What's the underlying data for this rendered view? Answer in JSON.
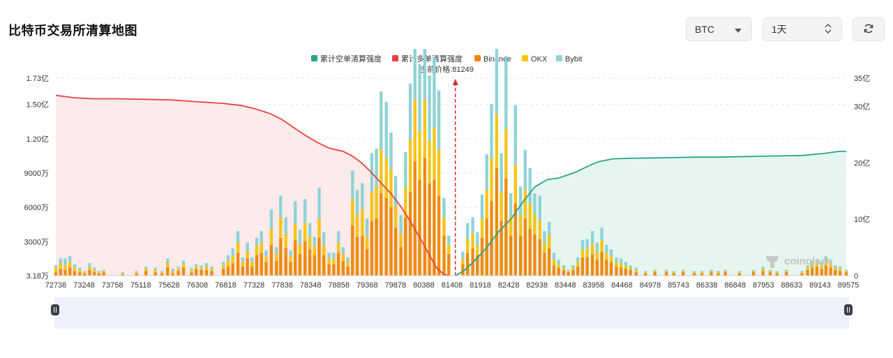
{
  "page": {
    "title": "比特币交易所清算地图"
  },
  "controls": {
    "coin": {
      "value": "BTC",
      "icon": "chevron-down-icon"
    },
    "range": {
      "value": "1天",
      "icon": "up-down-caret-icon"
    },
    "refresh": {
      "icon": "refresh-icon"
    }
  },
  "legend": [
    {
      "label": "累计空单清算强度",
      "color": "#27a586"
    },
    {
      "label": "累计多单清算强度",
      "color": "#e84142"
    },
    {
      "label": "Binance",
      "color": "#f08a0c"
    },
    {
      "label": "OKX",
      "color": "#f5c518"
    },
    {
      "label": "Bybit",
      "color": "#8fd3d6"
    }
  ],
  "current_price_label": "当前价格:81249",
  "watermark": "coinglass",
  "chart_data": {
    "type": "bar",
    "current_price": 81249,
    "x_range": [
      72738,
      89575
    ],
    "x_ticks": [
      "72738",
      "73248",
      "73758",
      "75118",
      "75628",
      "76308",
      "76818",
      "77328",
      "77838",
      "78348",
      "78858",
      "79368",
      "79878",
      "80388",
      "81408",
      "81918",
      "82428",
      "82938",
      "83448",
      "83958",
      "84468",
      "84978",
      "85743",
      "86338",
      "86848",
      "87953",
      "88633",
      "89143",
      "89575"
    ],
    "y_left": {
      "ticks": [
        "3.18万",
        "3000万",
        "6000万",
        "9000万",
        "1.20亿",
        "1.50亿",
        "1.73亿"
      ],
      "range": [
        318000,
        173000000
      ]
    },
    "y_right": {
      "ticks": [
        "0",
        "10亿",
        "20亿",
        "30亿",
        "35亿"
      ],
      "range": [
        0,
        3500000000
      ]
    },
    "series_left_scale_unit": "万",
    "cumulative_long": [
      [
        72738,
        158000000
      ],
      [
        73100,
        156000000
      ],
      [
        73500,
        155000000
      ],
      [
        74000,
        155000000
      ],
      [
        74600,
        154500000
      ],
      [
        75200,
        154000000
      ],
      [
        75700,
        152500000
      ],
      [
        76300,
        151000000
      ],
      [
        76700,
        149000000
      ],
      [
        77000,
        146000000
      ],
      [
        77300,
        142000000
      ],
      [
        77550,
        137000000
      ],
      [
        77800,
        130000000
      ],
      [
        78050,
        123000000
      ],
      [
        78300,
        117000000
      ],
      [
        78550,
        112000000
      ],
      [
        78858,
        109000000
      ],
      [
        79050,
        105000000
      ],
      [
        79250,
        99000000
      ],
      [
        79450,
        91000000
      ],
      [
        79650,
        82000000
      ],
      [
        79878,
        72000000
      ],
      [
        80100,
        60000000
      ],
      [
        80300,
        47000000
      ],
      [
        80500,
        33000000
      ],
      [
        80700,
        18000000
      ],
      [
        80850,
        7000000
      ],
      [
        81000,
        1500000
      ],
      [
        81100,
        318000
      ]
    ],
    "cumulative_short": [
      [
        81249,
        0
      ],
      [
        81450,
        100000000
      ],
      [
        81700,
        300000000
      ],
      [
        81918,
        500000000
      ],
      [
        82150,
        760000000
      ],
      [
        82428,
        1000000000
      ],
      [
        82700,
        1320000000
      ],
      [
        82938,
        1570000000
      ],
      [
        83200,
        1700000000
      ],
      [
        83448,
        1730000000
      ],
      [
        83800,
        1830000000
      ],
      [
        84100,
        1950000000
      ],
      [
        84300,
        2020000000
      ],
      [
        84600,
        2070000000
      ],
      [
        84978,
        2080000000
      ],
      [
        85743,
        2090000000
      ],
      [
        86338,
        2100000000
      ],
      [
        86848,
        2100000000
      ],
      [
        87953,
        2120000000
      ],
      [
        88633,
        2130000000
      ],
      [
        89143,
        2170000000
      ],
      [
        89400,
        2200000000
      ],
      [
        89575,
        2200000000
      ]
    ],
    "bars_in_wan": [
      [
        72738,
        300,
        400,
        200
      ],
      [
        72838,
        600,
        500,
        400
      ],
      [
        72938,
        500,
        400,
        600
      ],
      [
        73038,
        700,
        500,
        500
      ],
      [
        73138,
        400,
        300,
        300
      ],
      [
        73248,
        300,
        200,
        200
      ],
      [
        73348,
        200,
        100,
        100
      ],
      [
        73458,
        500,
        300,
        300
      ],
      [
        73558,
        300,
        200,
        200
      ],
      [
        73658,
        200,
        100,
        100
      ],
      [
        73758,
        300,
        100,
        100
      ],
      [
        74158,
        100,
        100,
        100
      ],
      [
        74458,
        200,
        100,
        100
      ],
      [
        74658,
        400,
        200,
        200
      ],
      [
        74858,
        300,
        200,
        200
      ],
      [
        75000,
        200,
        100,
        100
      ],
      [
        75118,
        700,
        400,
        400
      ],
      [
        75228,
        200,
        200,
        200
      ],
      [
        75348,
        400,
        200,
        200
      ],
      [
        75458,
        700,
        300,
        300
      ],
      [
        75628,
        300,
        200,
        200
      ],
      [
        75728,
        600,
        200,
        200
      ],
      [
        75838,
        500,
        200,
        200
      ],
      [
        75948,
        500,
        300,
        300
      ],
      [
        76058,
        400,
        200,
        200
      ],
      [
        76308,
        600,
        300,
        300
      ],
      [
        76408,
        800,
        500,
        500
      ],
      [
        76508,
        1100,
        600,
        700
      ],
      [
        76618,
        2000,
        900,
        1000
      ],
      [
        76718,
        800,
        400,
        400
      ],
      [
        76818,
        1500,
        600,
        800
      ],
      [
        76918,
        800,
        400,
        400
      ],
      [
        77018,
        1800,
        800,
        700
      ],
      [
        77118,
        2000,
        900,
        1000
      ],
      [
        77218,
        1200,
        500,
        500
      ],
      [
        77328,
        2700,
        1400,
        1700
      ],
      [
        77438,
        1300,
        600,
        600
      ],
      [
        77528,
        3300,
        1800,
        1900
      ],
      [
        77638,
        2400,
        1200,
        1500
      ],
      [
        77738,
        1200,
        500,
        500
      ],
      [
        77838,
        3100,
        1400,
        2000
      ],
      [
        77938,
        1900,
        900,
        1200
      ],
      [
        78048,
        3000,
        1600,
        2100
      ],
      [
        78148,
        2300,
        1100,
        1200
      ],
      [
        78248,
        1800,
        800,
        800
      ],
      [
        78348,
        3300,
        1700,
        2700
      ],
      [
        78448,
        1800,
        900,
        1100
      ],
      [
        78558,
        1000,
        500,
        500
      ],
      [
        78658,
        1000,
        500,
        500
      ],
      [
        78758,
        2000,
        900,
        1000
      ],
      [
        78858,
        1300,
        600,
        600
      ],
      [
        78958,
        800,
        400,
        400
      ],
      [
        79058,
        4400,
        2300,
        2500
      ],
      [
        79158,
        3400,
        1900,
        2200
      ],
      [
        79268,
        3500,
        2300,
        2300
      ],
      [
        79368,
        2300,
        1100,
        1600
      ],
      [
        79468,
        4800,
        2500,
        3400
      ],
      [
        79568,
        5000,
        2800,
        3300
      ],
      [
        79668,
        7200,
        3800,
        5100
      ],
      [
        79778,
        6800,
        3500,
        4900
      ],
      [
        79878,
        6000,
        3300,
        3200
      ],
      [
        79978,
        4200,
        1900,
        2600
      ],
      [
        80088,
        2500,
        1200,
        1600
      ],
      [
        80188,
        5100,
        2600,
        3100
      ],
      [
        80288,
        7300,
        4600,
        4900
      ],
      [
        80388,
        10000,
        5400,
        6500
      ],
      [
        80488,
        8400,
        4200,
        5900
      ],
      [
        80598,
        10300,
        5100,
        6600
      ],
      [
        80698,
        8100,
        3700,
        5700
      ],
      [
        80798,
        8400,
        4500,
        6100
      ],
      [
        80898,
        7000,
        4000,
        5200
      ],
      [
        81008,
        3500,
        1600,
        1700
      ],
      [
        81108,
        1900,
        800,
        800
      ],
      [
        81408,
        1000,
        500,
        600
      ],
      [
        81508,
        2000,
        1200,
        1400
      ],
      [
        81618,
        2400,
        1300,
        1400
      ],
      [
        81718,
        1800,
        800,
        1200
      ],
      [
        81818,
        3300,
        1700,
        2100
      ],
      [
        81918,
        5000,
        2500,
        3100
      ],
      [
        82018,
        6500,
        3800,
        4700
      ],
      [
        82128,
        9400,
        4700,
        6200
      ],
      [
        82228,
        4800,
        2500,
        3400
      ],
      [
        82328,
        8500,
        4300,
        6400
      ],
      [
        82428,
        3500,
        1700,
        2000
      ],
      [
        82528,
        6300,
        3400,
        5200
      ],
      [
        82638,
        3500,
        1800,
        2500
      ],
      [
        82738,
        5000,
        2500,
        3500
      ],
      [
        82838,
        4100,
        2200,
        3100
      ],
      [
        82938,
        3600,
        1800,
        1800
      ],
      [
        83048,
        3200,
        1600,
        2200
      ],
      [
        83148,
        2000,
        900,
        1000
      ],
      [
        83248,
        2400,
        1200,
        1100
      ],
      [
        83348,
        900,
        500,
        600
      ],
      [
        83448,
        700,
        300,
        400
      ],
      [
        83558,
        500,
        200,
        200
      ],
      [
        83658,
        300,
        100,
        100
      ],
      [
        83758,
        500,
        200,
        200
      ],
      [
        83858,
        800,
        400,
        400
      ],
      [
        83958,
        1600,
        700,
        800
      ],
      [
        84058,
        1600,
        800,
        800
      ],
      [
        84168,
        1900,
        900,
        1100
      ],
      [
        84268,
        1400,
        700,
        800
      ],
      [
        84368,
        2100,
        1000,
        1100
      ],
      [
        84468,
        1400,
        600,
        700
      ],
      [
        84568,
        1200,
        500,
        600
      ],
      [
        84678,
        800,
        400,
        400
      ],
      [
        84778,
        700,
        400,
        400
      ],
      [
        84878,
        600,
        300,
        300
      ],
      [
        84978,
        500,
        200,
        200
      ],
      [
        85100,
        300,
        200,
        200
      ],
      [
        85300,
        200,
        100,
        100
      ],
      [
        85500,
        300,
        100,
        100
      ],
      [
        85743,
        300,
        100,
        100
      ],
      [
        85900,
        200,
        100,
        100
      ],
      [
        86100,
        300,
        100,
        100
      ],
      [
        86338,
        200,
        100,
        100
      ],
      [
        86500,
        200,
        100,
        100
      ],
      [
        86700,
        300,
        100,
        100
      ],
      [
        86848,
        200,
        100,
        100
      ],
      [
        87000,
        300,
        100,
        100
      ],
      [
        87300,
        200,
        100,
        100
      ],
      [
        87600,
        300,
        100,
        100
      ],
      [
        87800,
        400,
        200,
        200
      ],
      [
        87953,
        300,
        100,
        100
      ],
      [
        88100,
        200,
        100,
        100
      ],
      [
        88300,
        300,
        100,
        100
      ],
      [
        88633,
        200,
        100,
        100
      ],
      [
        88750,
        500,
        200,
        200
      ],
      [
        88850,
        700,
        300,
        300
      ],
      [
        88950,
        800,
        300,
        300
      ],
      [
        89050,
        600,
        300,
        300
      ],
      [
        89143,
        900,
        400,
        400
      ],
      [
        89243,
        700,
        300,
        300
      ],
      [
        89343,
        500,
        200,
        200
      ],
      [
        89443,
        400,
        200,
        200
      ],
      [
        89575,
        300,
        100,
        100
      ]
    ]
  }
}
